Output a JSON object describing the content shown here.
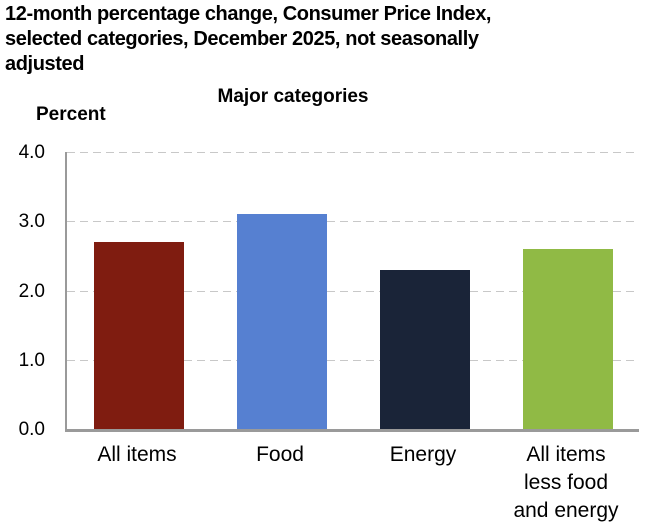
{
  "title": {
    "lines": [
      "12-month percentage change, Consumer Price Index,",
      "selected categories, December 2025, not seasonally",
      "adjusted"
    ]
  },
  "chart_data": {
    "type": "bar",
    "title": "Major categories",
    "ylabel": "Percent",
    "xlabel": "",
    "categories": [
      "All items",
      "Food",
      "Energy",
      "All items\nless food\nand energy"
    ],
    "values": [
      2.7,
      3.1,
      2.3,
      2.6
    ],
    "bar_colors": [
      "#7f1c10",
      "#5680d1",
      "#1a2438",
      "#90ba45"
    ],
    "ylim": [
      0.0,
      4.0
    ],
    "ytick_labels": [
      "4.0",
      "3.0",
      "2.0",
      "1.0",
      "0.0"
    ],
    "grid": "horizontal-dashed",
    "legend": "none",
    "axis_color": "#9a9a9a",
    "gridline_color": "#c8c8c8"
  }
}
